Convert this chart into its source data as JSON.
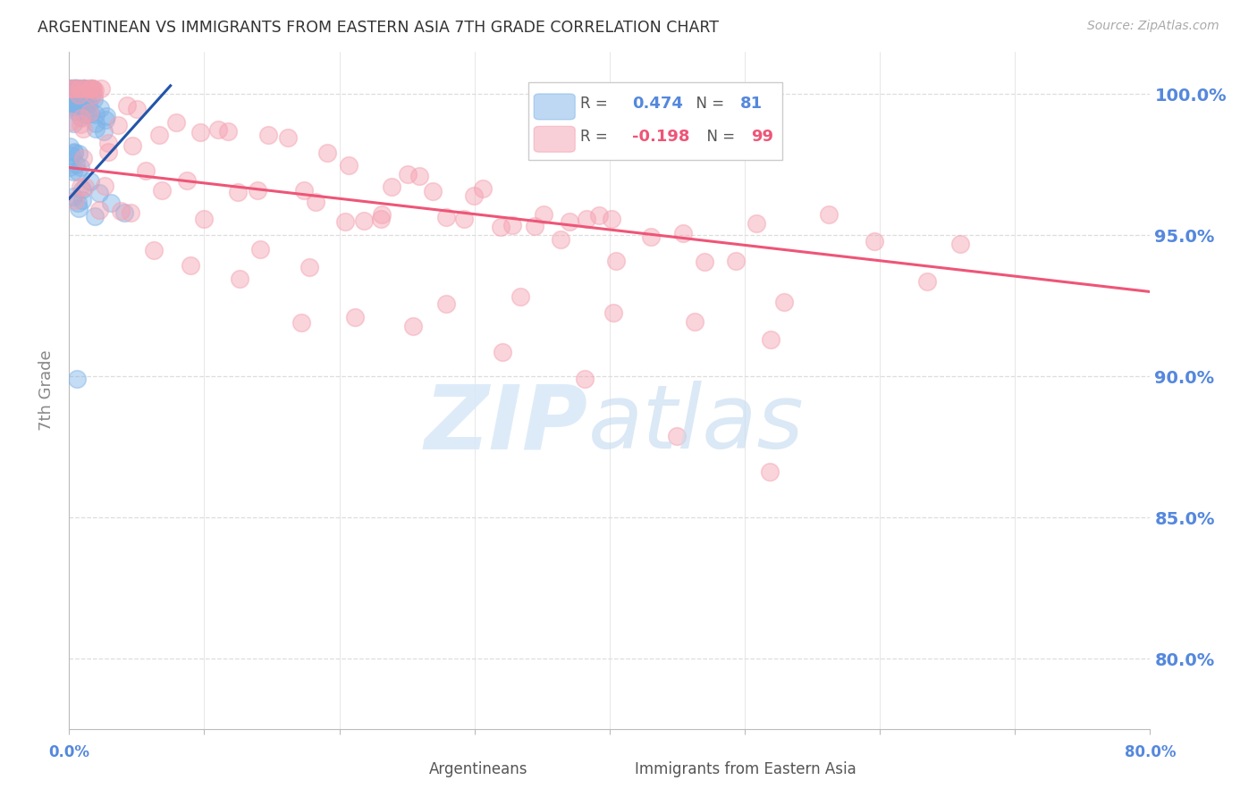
{
  "title": "ARGENTINEAN VS IMMIGRANTS FROM EASTERN ASIA 7TH GRADE CORRELATION CHART",
  "source": "Source: ZipAtlas.com",
  "ylabel": "7th Grade",
  "ytick_labels": [
    "80.0%",
    "85.0%",
    "90.0%",
    "95.0%",
    "100.0%"
  ],
  "ytick_values": [
    0.8,
    0.85,
    0.9,
    0.95,
    1.0
  ],
  "xlim": [
    0.0,
    0.8
  ],
  "ylim": [
    0.775,
    1.015
  ],
  "blue_color": "#7EB3E8",
  "pink_color": "#F4A0B0",
  "blue_line_color": "#2255AA",
  "pink_line_color": "#EE5577",
  "background_color": "#ffffff",
  "title_color": "#333333",
  "axis_label_color": "#888888",
  "ytick_color": "#5588DD",
  "xtick_color": "#5588DD",
  "grid_color": "#DDDDDD",
  "blue_r": "0.474",
  "blue_n": "81",
  "pink_r": "-0.198",
  "pink_n": "99",
  "blue_trend_x": [
    0.0,
    0.075
  ],
  "blue_trend_y": [
    0.963,
    1.003
  ],
  "pink_trend_x": [
    0.0,
    0.8
  ],
  "pink_trend_y": [
    0.974,
    0.93
  ]
}
